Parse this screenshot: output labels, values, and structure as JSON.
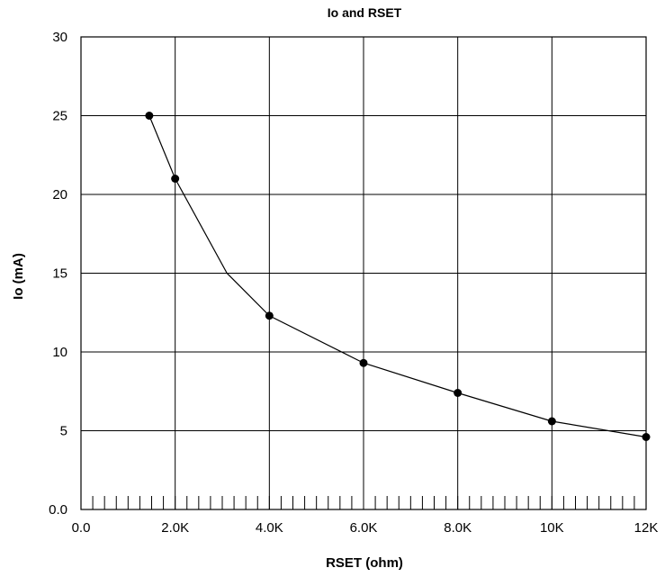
{
  "chart_data": {
    "type": "line",
    "title": "Io and RSET",
    "xlabel": "RSET (ohm)",
    "ylabel": "Io (mA)",
    "xlim": [
      0,
      12000
    ],
    "ylim": [
      0,
      30
    ],
    "x_ticks": [
      {
        "value": 0,
        "label": "0.0"
      },
      {
        "value": 2000,
        "label": "2.0K"
      },
      {
        "value": 4000,
        "label": "4.0K"
      },
      {
        "value": 6000,
        "label": "6.0K"
      },
      {
        "value": 8000,
        "label": "8.0K"
      },
      {
        "value": 10000,
        "label": "10K"
      },
      {
        "value": 12000,
        "label": "12K"
      }
    ],
    "y_ticks": [
      {
        "value": 0,
        "label": "0.0"
      },
      {
        "value": 5,
        "label": "5"
      },
      {
        "value": 10,
        "label": "10"
      },
      {
        "value": 15,
        "label": "15"
      },
      {
        "value": 20,
        "label": "20"
      },
      {
        "value": 25,
        "label": "25"
      },
      {
        "value": 30,
        "label": "30"
      }
    ],
    "grid": true,
    "minor_x_tick_step": 250,
    "series": [
      {
        "line": [
          {
            "x": 1450,
            "y": 25.0
          },
          {
            "x": 2000,
            "y": 21.0
          },
          {
            "x": 3100,
            "y": 15.0
          },
          {
            "x": 4000,
            "y": 12.3
          },
          {
            "x": 6000,
            "y": 9.3
          },
          {
            "x": 8000,
            "y": 7.4
          },
          {
            "x": 10000,
            "y": 5.6
          },
          {
            "x": 12000,
            "y": 4.6
          }
        ],
        "markers": [
          {
            "x": 1450,
            "y": 25.0
          },
          {
            "x": 2000,
            "y": 21.0
          },
          {
            "x": 4000,
            "y": 12.3
          },
          {
            "x": 6000,
            "y": 9.3
          },
          {
            "x": 8000,
            "y": 7.4
          },
          {
            "x": 10000,
            "y": 5.6
          },
          {
            "x": 12000,
            "y": 4.6
          }
        ]
      }
    ]
  }
}
